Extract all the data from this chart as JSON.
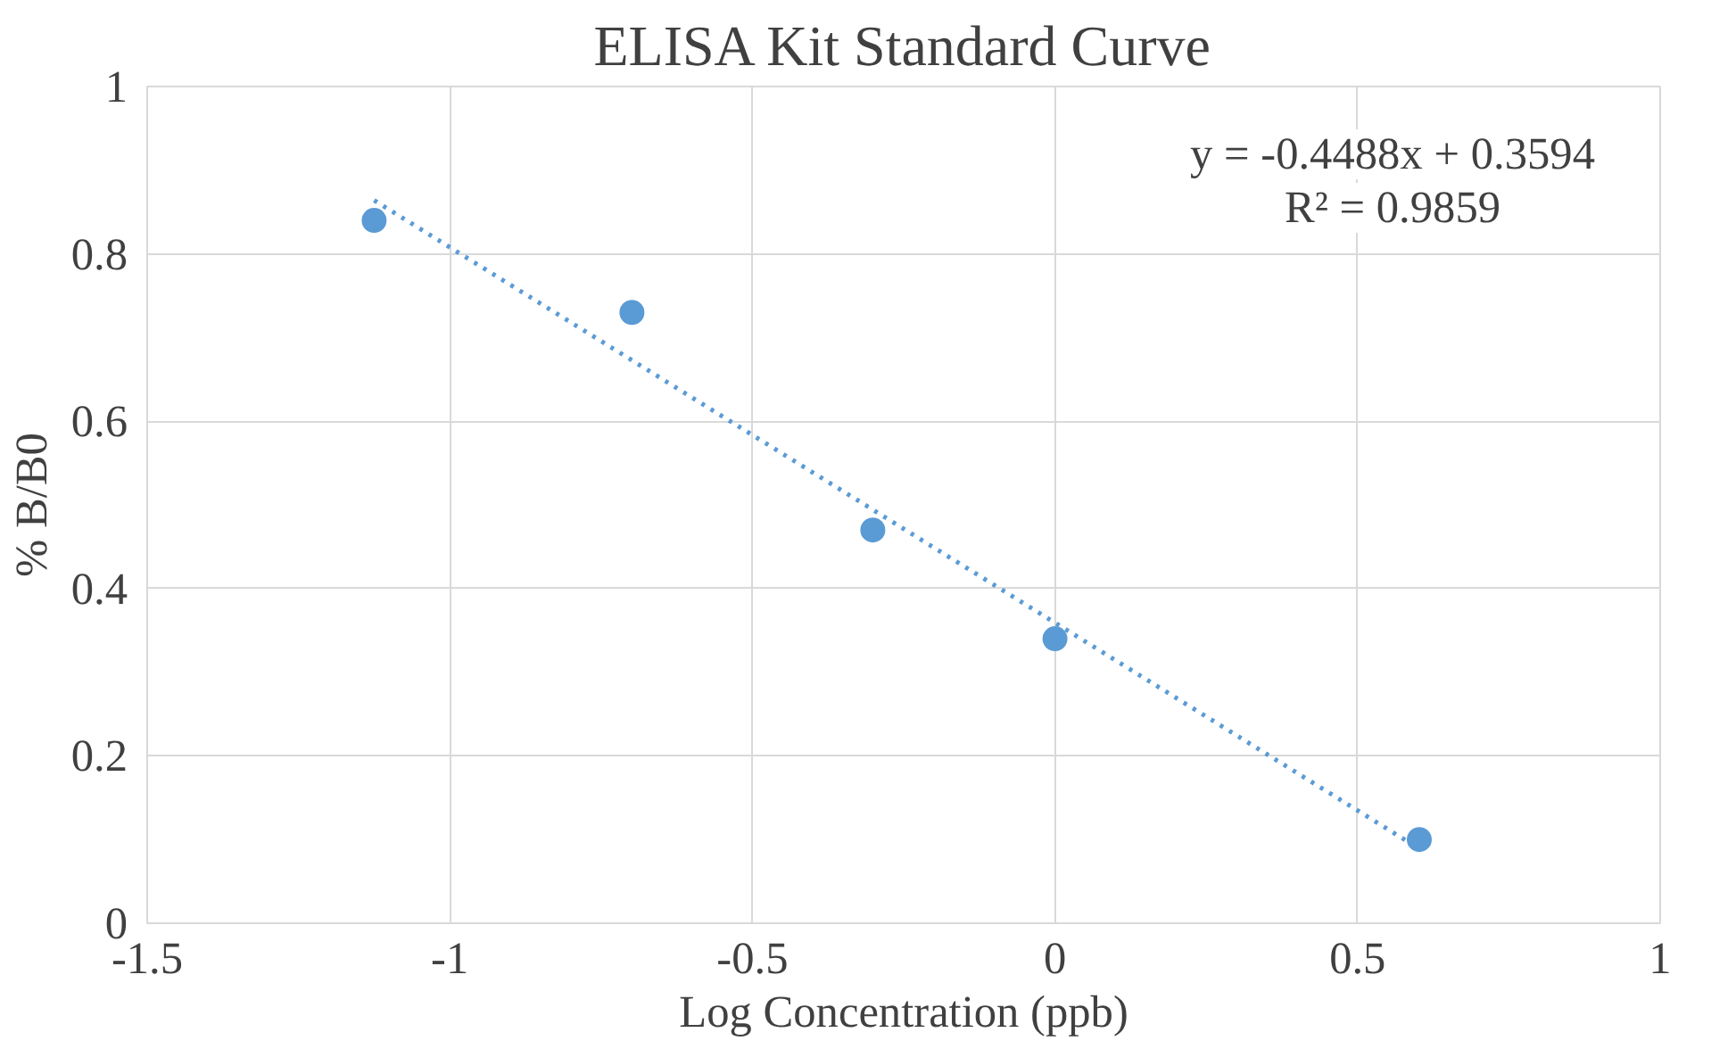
{
  "chart_data": {
    "type": "scatter",
    "title": "ELISA Kit Standard Curve",
    "xlabel": "Log Concentration (ppb)",
    "ylabel": "% B/B0",
    "series": [
      {
        "color": "#5b9bd5",
        "x": [
          -1.125,
          -0.699,
          -0.301,
          0.0,
          0.602
        ],
        "values": [
          0.84,
          0.73,
          0.47,
          0.34,
          0.1
        ],
        "marker": "circle"
      },
      {
        "type": "line",
        "color": "#5b9bd5",
        "x": [
          -1.125,
          0.602
        ],
        "values": [
          0.864,
          0.089
        ],
        "line_style": "dotted"
      }
    ],
    "annotations": [
      "y = -0.4488x + 0.3594",
      "R² = 0.9859"
    ],
    "xlim": [
      -1.5,
      1
    ],
    "ylim": [
      0,
      1
    ],
    "xticks": [
      -1.5,
      -1,
      -0.5,
      0,
      0.5,
      1
    ],
    "yticks": [
      0,
      0.2,
      0.4,
      0.6,
      0.8,
      1
    ],
    "grid": true
  }
}
